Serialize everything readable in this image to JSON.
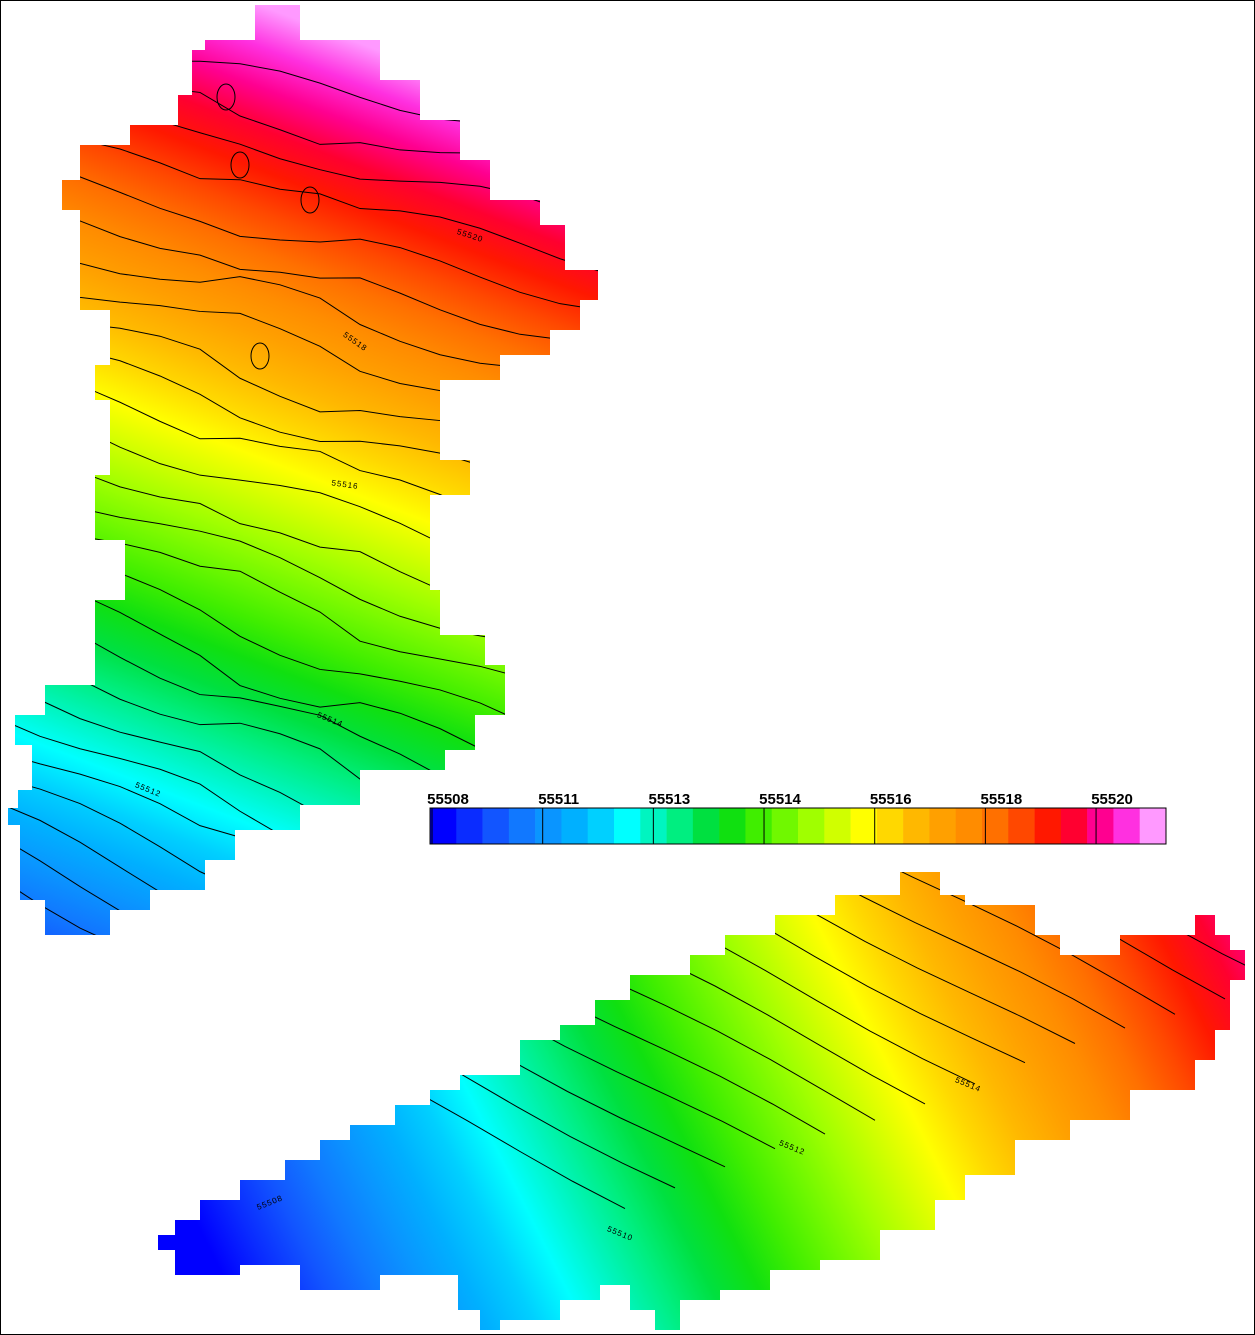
{
  "colorbar": {
    "labels": [
      55508,
      55511,
      55513,
      55514,
      55516,
      55518,
      55520
    ],
    "colors": [
      "#0000ff",
      "#0a2cff",
      "#1255ff",
      "#1178ff",
      "#0a95ff",
      "#00b0ff",
      "#00d0ff",
      "#00ffff",
      "#00f5c0",
      "#00ee80",
      "#00e040",
      "#10e010",
      "#40ee00",
      "#70f800",
      "#a0ff00",
      "#d0ff00",
      "#ffff00",
      "#ffd800",
      "#ffb800",
      "#ffa000",
      "#ff8c00",
      "#ff7000",
      "#ff4800",
      "#ff1800",
      "#ff0030",
      "#ff0090",
      "#ff30e0",
      "#ff99ff"
    ]
  },
  "contour_labels": [
    55520,
    55518,
    55516,
    55514,
    55512,
    55514,
    55512,
    55510,
    55508
  ]
}
